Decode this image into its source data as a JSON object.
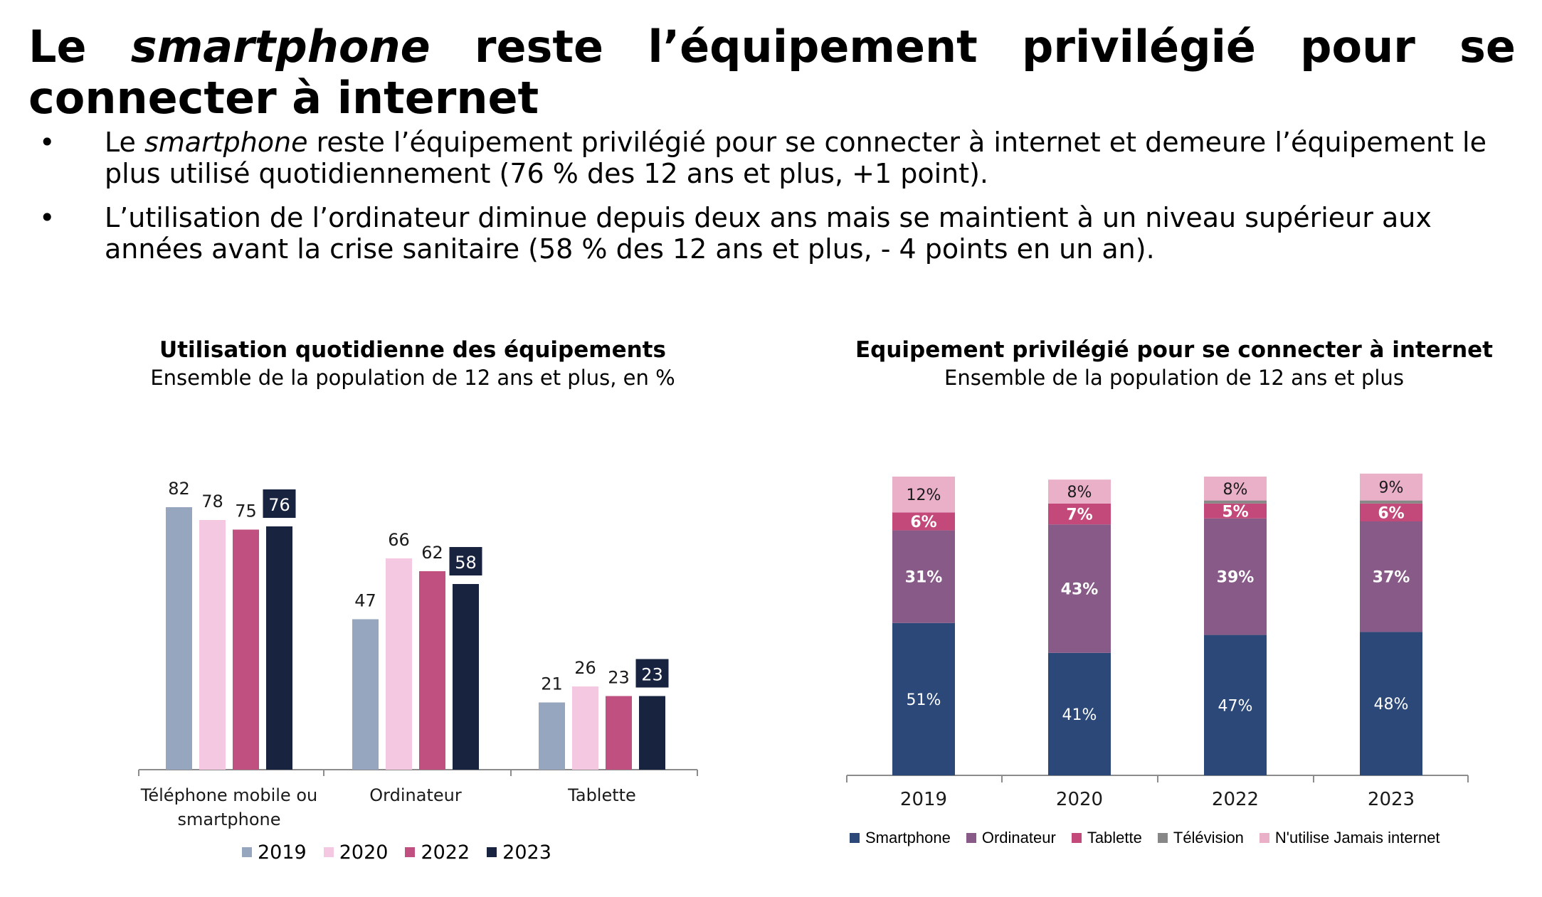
{
  "page": {
    "title_pre": "Le ",
    "title_em": "smartphone",
    "title_post": " reste l’équipement privilégié pour se connecter à internet",
    "bullets": [
      {
        "pre": "Le ",
        "em": "smartphone",
        "post": " reste l’équipement privilégié pour se connecter à internet et demeure l’équipement le plus utilisé quotidiennement (76 % des 12 ans et plus, +1 point)."
      },
      {
        "pre": "",
        "em": "",
        "post": "L’utilisation de l’ordinateur diminue depuis deux ans mais se maintient à un niveau supérieur aux années avant la crise sanitaire (58 % des 12 ans et plus, - 4 points en un an)."
      }
    ],
    "bullet_symbol": "•"
  },
  "chart_data": [
    {
      "type": "bar",
      "title": "Utilisation quotidienne des équipements",
      "subtitle": "Ensemble de la population de 12 ans et plus, en %",
      "categories": [
        "Téléphone mobile ou smartphone",
        "Ordinateur",
        "Tablette"
      ],
      "category_lines": [
        [
          "Téléphone mobile ou",
          "smartphone"
        ],
        [
          "Ordinateur"
        ],
        [
          "Tablette"
        ]
      ],
      "series": [
        {
          "name": "2019",
          "color": "#96a6be",
          "values": [
            82,
            47,
            21
          ]
        },
        {
          "name": "2020",
          "color": "#f5c8e1",
          "values": [
            78,
            66,
            26
          ]
        },
        {
          "name": "2022",
          "color": "#c0507f",
          "values": [
            75,
            62,
            23
          ]
        },
        {
          "name": "2023",
          "color": "#18233f",
          "values": [
            76,
            58,
            23
          ],
          "highlight_labels": true
        }
      ],
      "ylim": [
        0,
        82
      ],
      "grid": false,
      "legend_position": "bottom"
    },
    {
      "type": "bar",
      "stacked": true,
      "title": "Equipement privilégié pour se connecter à internet",
      "subtitle": "Ensemble de la population de 12 ans et plus",
      "categories": [
        "2019",
        "2020",
        "2022",
        "2023"
      ],
      "series": [
        {
          "name": "Smartphone",
          "color": "#2b4878",
          "values": [
            51,
            41,
            47,
            48
          ],
          "labels": [
            "51%",
            "41%",
            "47%",
            "48%"
          ],
          "label_color": "#ffffff",
          "label_bold": false
        },
        {
          "name": "Ordinateur",
          "color": "#875a87",
          "values": [
            31,
            43,
            39,
            37
          ],
          "labels": [
            "31%",
            "43%",
            "39%",
            "37%"
          ],
          "label_color": "#ffffff",
          "label_bold": true
        },
        {
          "name": "Tablette",
          "color": "#c2497a",
          "values": [
            6,
            7,
            5,
            6
          ],
          "labels": [
            "6%",
            "7%",
            "5%",
            "6%"
          ],
          "label_color": "#ffffff",
          "label_bold": true
        },
        {
          "name": "Télévision",
          "color": "#878787",
          "values": [
            0,
            0,
            1,
            1
          ],
          "labels": [
            "",
            "",
            "",
            ""
          ],
          "label_color": "#ffffff",
          "label_bold": false
        },
        {
          "name": "N'utilise Jamais internet",
          "color": "#eab0c8",
          "values": [
            12,
            8,
            8,
            9
          ],
          "labels": [
            "12%",
            "8%",
            "8%",
            "9%"
          ],
          "label_color": "#1a1a1a",
          "label_bold": false
        }
      ],
      "ylim": [
        0,
        100
      ],
      "grid": false,
      "legend_position": "bottom"
    }
  ]
}
